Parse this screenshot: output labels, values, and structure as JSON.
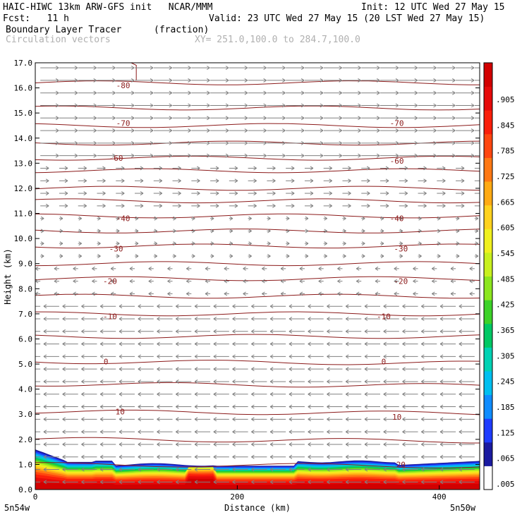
{
  "header": {
    "line1_left": "HAIC-HIWC 13km ARW-GFS init   NCAR/MMM",
    "line1_right": "Init: 12 UTC Wed 27 May 15",
    "line2_left": "Fcst:   11 h",
    "line2_right": "Valid: 23 UTC Wed 27 May 15 (20 LST Wed 27 May 15)",
    "line3_field": "Boundary Layer Tracer",
    "line3_units": "(fraction)",
    "line4_field": "Circulation vectors",
    "line4_xy": "XY= 251.0,100.0 to 284.7,100.0"
  },
  "axes": {
    "ylabel": "Height (km)",
    "xlabel": "Distance (km)",
    "left_corner": "5n54w",
    "right_corner": "5n50w"
  },
  "chart_data": {
    "type": "heatmap",
    "title": "Boundary Layer Tracer",
    "units": "(fraction)",
    "overlay": "Circulation vectors",
    "xlabel": "Distance (km)",
    "ylabel": "Height (km)",
    "xlim": [
      0,
      440
    ],
    "ylim": [
      0,
      17
    ],
    "xticks": [
      0,
      200,
      400
    ],
    "yticks": [
      0.0,
      1.0,
      2.0,
      3.0,
      4.0,
      5.0,
      6.0,
      7.0,
      8.0,
      9.0,
      10.0,
      11.0,
      12.0,
      13.0,
      14.0,
      15.0,
      16.0,
      17.0
    ],
    "colorbar": {
      "labels": [
        ".005",
        ".065",
        ".125",
        ".185",
        ".245",
        ".305",
        ".365",
        ".425",
        ".485",
        ".545",
        ".605",
        ".665",
        ".725",
        ".785",
        ".845",
        ".905"
      ],
      "colors": [
        "#ffffff",
        "#1a1aa0",
        "#1e3cff",
        "#0f8cff",
        "#00bff0",
        "#00d2b4",
        "#00c864",
        "#3cd228",
        "#8ce61e",
        "#c8f01e",
        "#f0f01e",
        "#ffd21e",
        "#ffaa14",
        "#ff7814",
        "#ff460f",
        "#fa1e0a",
        "#e60a0a",
        "#d20000"
      ]
    },
    "contour_labels": [
      {
        "text": "-80",
        "x": 87,
        "y": 16.1
      },
      {
        "text": "-70",
        "x": 87,
        "y": 14.6
      },
      {
        "text": "-70",
        "x": 358,
        "y": 14.6
      },
      {
        "text": "-60",
        "x": 80,
        "y": 13.2
      },
      {
        "text": "-60",
        "x": 358,
        "y": 13.1
      },
      {
        "text": "-40",
        "x": 87,
        "y": 10.8
      },
      {
        "text": "-40",
        "x": 358,
        "y": 10.8
      },
      {
        "text": "-30",
        "x": 80,
        "y": 9.6
      },
      {
        "text": "-30",
        "x": 362,
        "y": 9.6
      },
      {
        "text": "-20",
        "x": 74,
        "y": 8.3
      },
      {
        "text": "-20",
        "x": 362,
        "y": 8.3
      },
      {
        "text": "-10",
        "x": 74,
        "y": 6.9
      },
      {
        "text": "-10",
        "x": 345,
        "y": 6.9
      },
      {
        "text": "0",
        "x": 70,
        "y": 5.1
      },
      {
        "text": "0",
        "x": 345,
        "y": 5.1
      },
      {
        "text": "10",
        "x": 84,
        "y": 3.1
      },
      {
        "text": "10",
        "x": 358,
        "y": 2.9
      },
      {
        "text": "20",
        "x": 362,
        "y": 1.0
      }
    ],
    "contour_levels_km": [
      16.2,
      15.2,
      14.5,
      13.8,
      13.2,
      12.7,
      12.0,
      11.5,
      10.9,
      10.3,
      9.7,
      9.0,
      8.4,
      7.7,
      7.0,
      6.1,
      5.1,
      4.2,
      3.1,
      2.0,
      1.0
    ]
  },
  "colors": {
    "contour": "#8b1a1a",
    "vector": "#808080",
    "frame": "#000000"
  }
}
